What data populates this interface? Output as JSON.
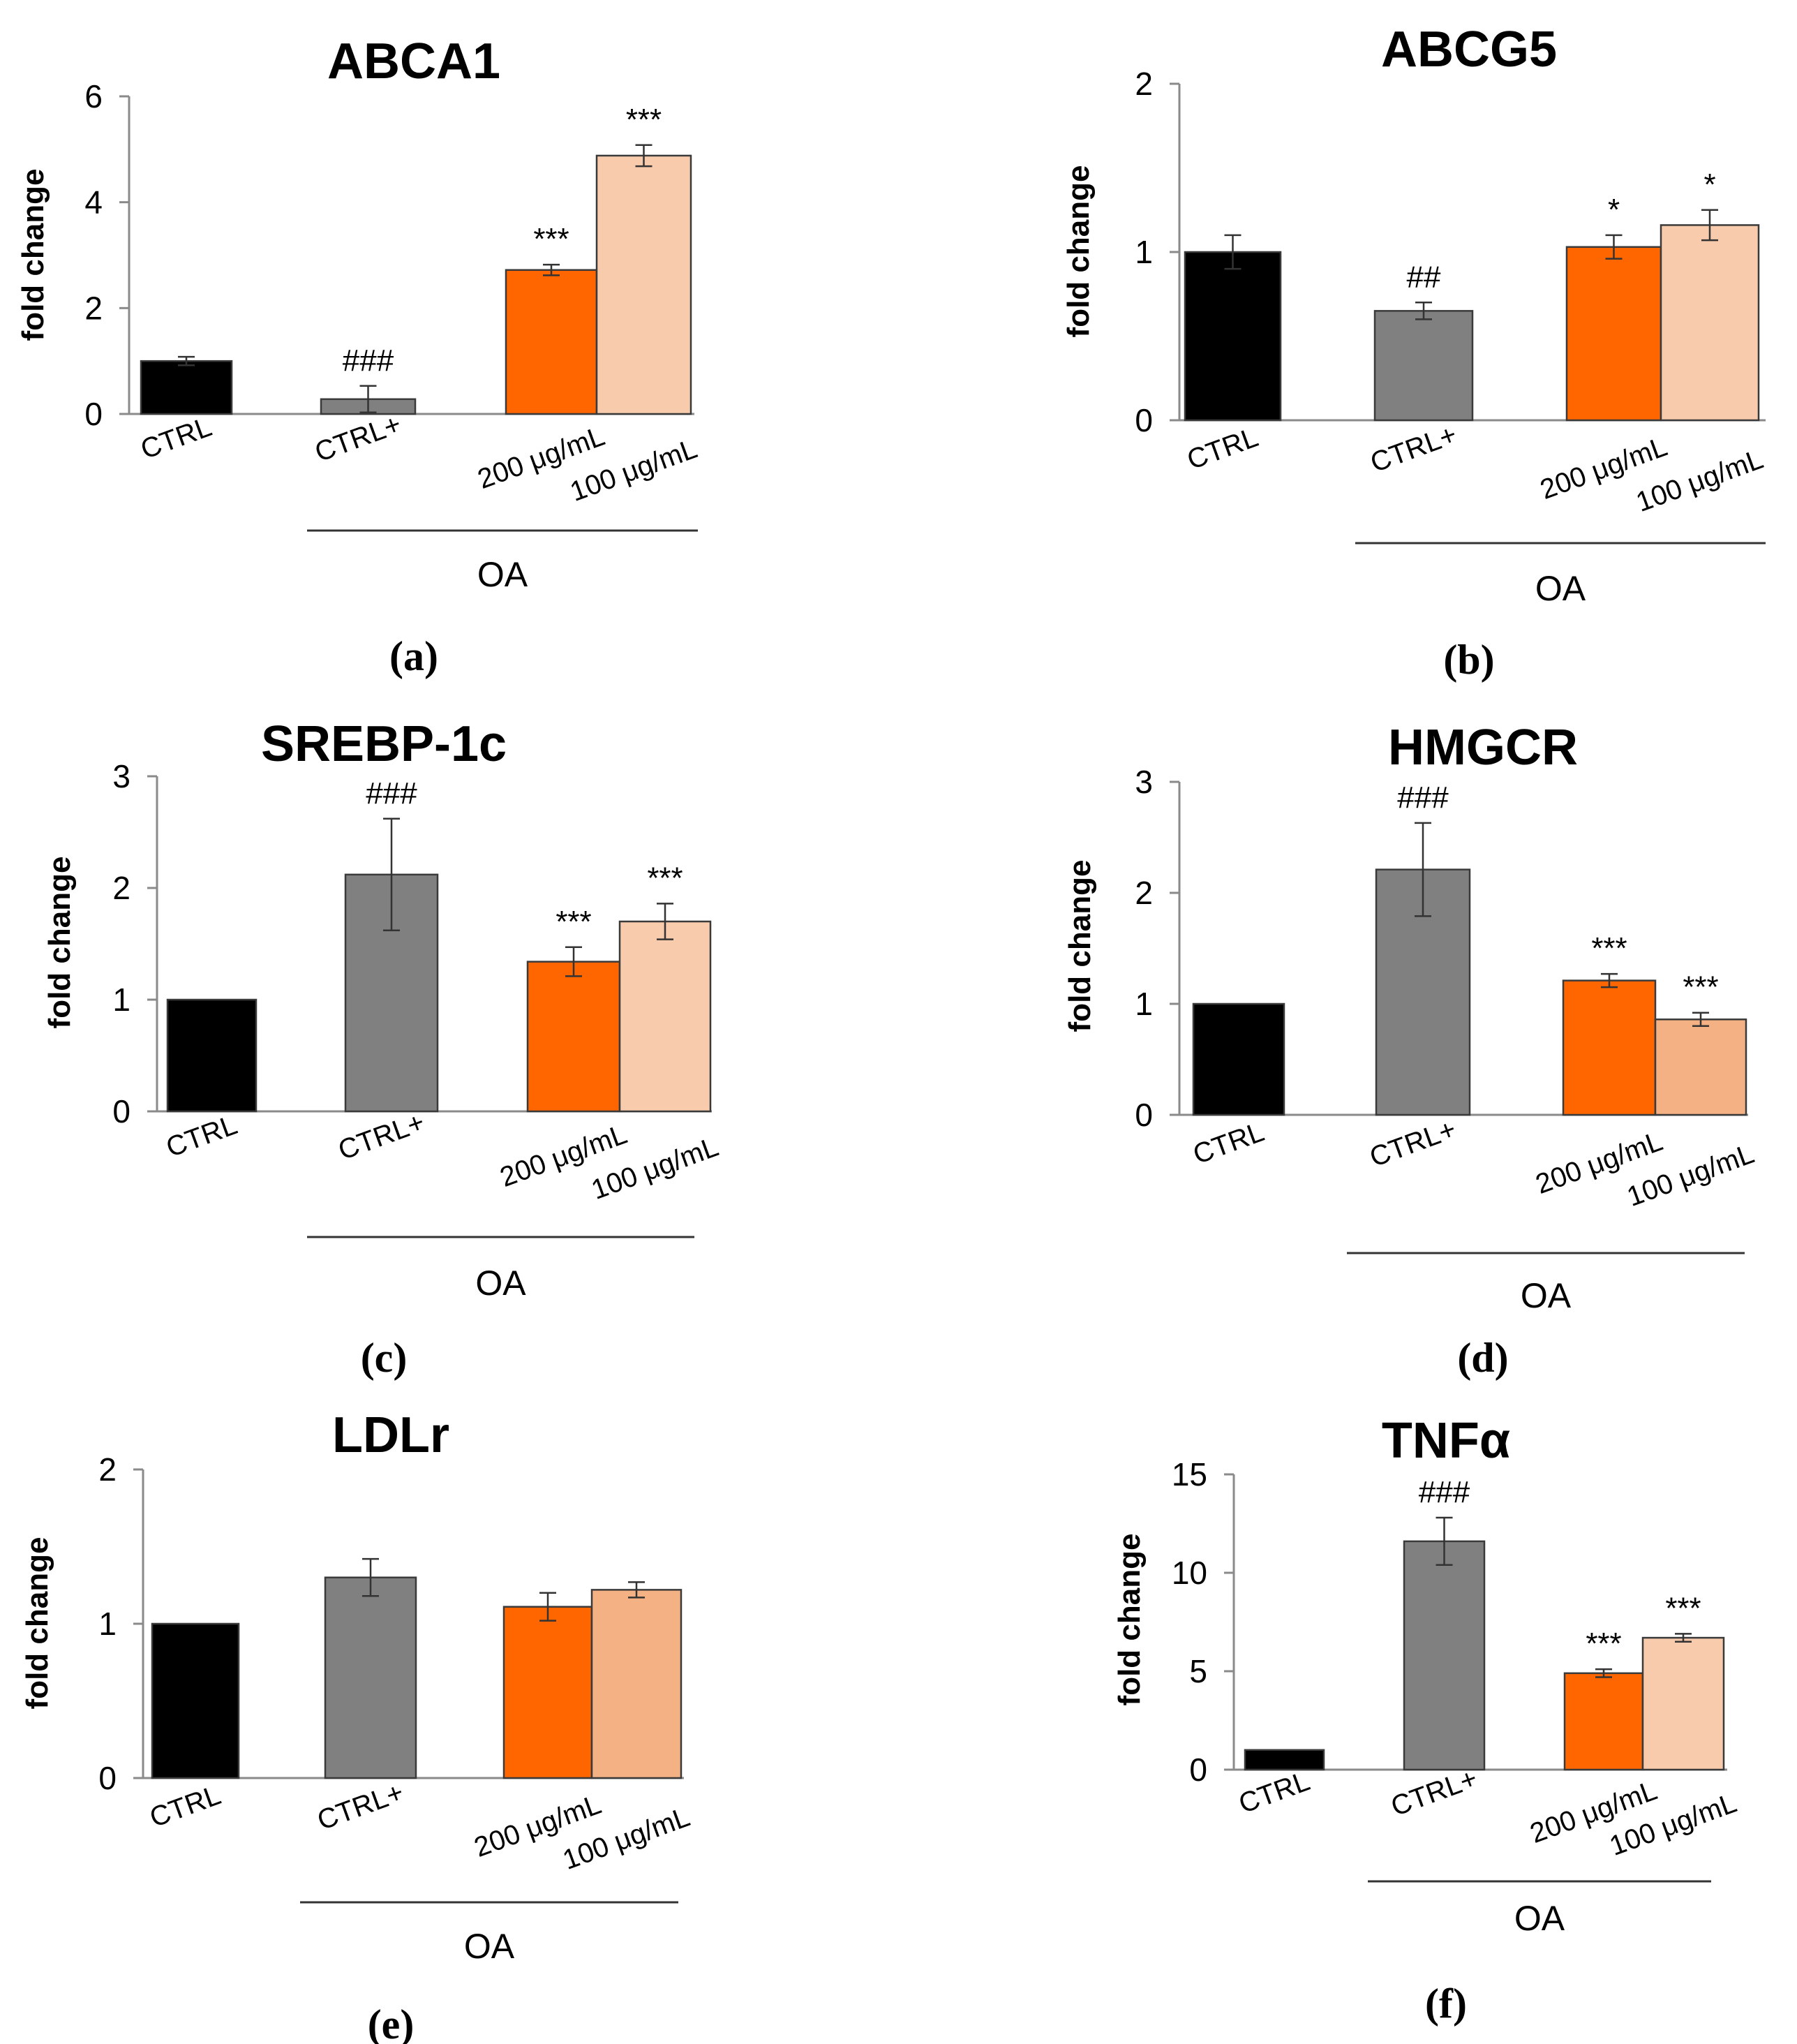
{
  "figure": {
    "group_label": "OA",
    "colors": {
      "ctrl": "#000000",
      "ctrl_plus": "#808080",
      "oa_200": "#ff6600",
      "oa_100_light": "#f8cbad",
      "oa_100_peach": "#f4b183",
      "axis": "#8a8a8a",
      "error": "#333333"
    }
  },
  "chart_data": [
    {
      "panel": "(a)",
      "type": "bar",
      "title": "ABCA1",
      "ylabel": "fold change",
      "categories": [
        "CTRL",
        "CTRL+",
        "200 μg/mL",
        "100 μg/mL"
      ],
      "values": [
        1.0,
        0.28,
        2.72,
        4.88
      ],
      "errors": [
        0.08,
        0.25,
        0.1,
        0.2
      ],
      "annotations": [
        "",
        "###",
        "***",
        "***"
      ],
      "ylim": [
        0,
        6
      ],
      "yticks": [
        0,
        2,
        4,
        6
      ],
      "bar_colors": [
        "ctrl",
        "ctrl_plus",
        "oa_200",
        "oa_100_light"
      ]
    },
    {
      "panel": "(b)",
      "type": "bar",
      "title": "ABCG5",
      "ylabel": "fold change",
      "categories": [
        "CTRL",
        "CTRL+",
        "200 μg/mL",
        "100 μg/mL"
      ],
      "values": [
        1.0,
        0.65,
        1.03,
        1.16
      ],
      "errors": [
        0.1,
        0.05,
        0.07,
        0.09
      ],
      "annotations": [
        "",
        "##",
        "*",
        "*"
      ],
      "ylim": [
        0,
        2
      ],
      "yticks": [
        0,
        1,
        2
      ],
      "bar_colors": [
        "ctrl",
        "ctrl_plus",
        "oa_200",
        "oa_100_light"
      ]
    },
    {
      "panel": "(c)",
      "type": "bar",
      "title": "SREBP-1c",
      "ylabel": "fold change",
      "categories": [
        "CTRL",
        "CTRL+",
        "200 μg/mL",
        "100 μg/mL"
      ],
      "values": [
        1.0,
        2.12,
        1.34,
        1.7
      ],
      "errors": [
        0.0,
        0.5,
        0.13,
        0.16
      ],
      "annotations": [
        "",
        "###",
        "***",
        "***"
      ],
      "ylim": [
        0,
        3
      ],
      "yticks": [
        0,
        1,
        2,
        3
      ],
      "bar_colors": [
        "ctrl",
        "ctrl_plus",
        "oa_200",
        "oa_100_light"
      ]
    },
    {
      "panel": "(d)",
      "type": "bar",
      "title": "HMGCR",
      "ylabel": "fold change",
      "categories": [
        "CTRL",
        "CTRL+",
        "200 μg/mL",
        "100 μg/mL"
      ],
      "values": [
        1.0,
        2.21,
        1.21,
        0.86
      ],
      "errors": [
        0.0,
        0.42,
        0.06,
        0.06
      ],
      "annotations": [
        "",
        "###",
        "***",
        "***"
      ],
      "ylim": [
        0,
        3
      ],
      "yticks": [
        0,
        1,
        2,
        3
      ],
      "bar_colors": [
        "ctrl",
        "ctrl_plus",
        "oa_200",
        "oa_100_peach"
      ]
    },
    {
      "panel": "(e)",
      "type": "bar",
      "title": "LDLr",
      "ylabel": "fold change",
      "categories": [
        "CTRL",
        "CTRL+",
        "200 μg/mL",
        "100 μg/mL"
      ],
      "values": [
        1.0,
        1.3,
        1.11,
        1.22
      ],
      "errors": [
        0.0,
        0.12,
        0.09,
        0.05
      ],
      "annotations": [
        "",
        "",
        "",
        ""
      ],
      "ylim": [
        0,
        2
      ],
      "yticks": [
        0,
        1,
        2
      ],
      "bar_colors": [
        "ctrl",
        "ctrl_plus",
        "oa_200",
        "oa_100_peach"
      ]
    },
    {
      "panel": "(f)",
      "type": "bar",
      "title": "TNFα",
      "ylabel": "fold change",
      "categories": [
        "CTRL",
        "CTRL+",
        "200 μg/mL",
        "100 μg/mL"
      ],
      "values": [
        1.0,
        11.6,
        4.9,
        6.7
      ],
      "errors": [
        0.0,
        1.2,
        0.2,
        0.2
      ],
      "annotations": [
        "",
        "###",
        "***",
        "***"
      ],
      "ylim": [
        0,
        15
      ],
      "yticks": [
        0,
        5,
        10,
        15
      ],
      "bar_colors": [
        "ctrl",
        "ctrl_plus",
        "oa_200",
        "oa_100_light"
      ]
    }
  ]
}
